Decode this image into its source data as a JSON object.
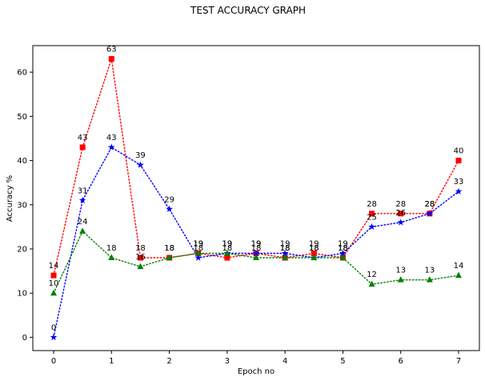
{
  "chart_data": {
    "type": "line",
    "title": "TEST ACCURACY GRAPH",
    "xlabel": "Epoch no",
    "ylabel": "Accuracy %",
    "xlim": [
      -0.36,
      7.36
    ],
    "ylim": [
      -3,
      66
    ],
    "xticks": [
      0,
      1,
      2,
      3,
      4,
      5,
      6,
      7
    ],
    "yticks": [
      0,
      10,
      20,
      30,
      40,
      50,
      60
    ],
    "grid": false,
    "legend": "none",
    "x": [
      0,
      0.5,
      1,
      1.5,
      2,
      2.5,
      3,
      3.5,
      4,
      4.5,
      5,
      5.5,
      6,
      6.5,
      7
    ],
    "series": [
      {
        "color": "#ff0000",
        "marker": "square",
        "linestyle": "dotted",
        "values": [
          14,
          43,
          63,
          18,
          18,
          19,
          18,
          19,
          18,
          19,
          18,
          28,
          28,
          28,
          40
        ]
      },
      {
        "color": "#0000ff",
        "marker": "star",
        "linestyle": "dotted",
        "values": [
          0,
          31,
          43,
          39,
          29,
          18,
          19,
          19,
          19,
          18,
          19,
          25,
          26,
          28,
          33
        ]
      },
      {
        "color": "#008000",
        "marker": "triangle",
        "linestyle": "dotted",
        "values": [
          10,
          24,
          18,
          16,
          18,
          19,
          19,
          18,
          18,
          18,
          18,
          12,
          13,
          13,
          14
        ]
      }
    ]
  }
}
